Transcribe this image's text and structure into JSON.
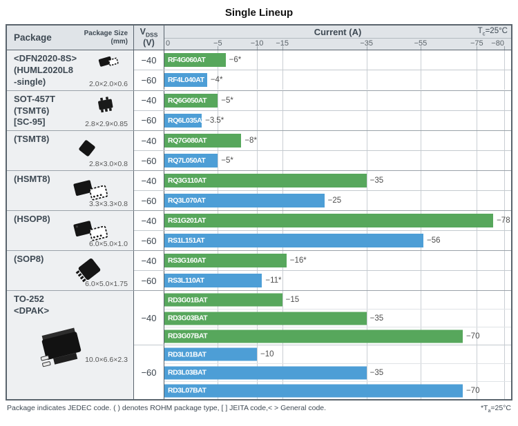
{
  "title": "Single Lineup",
  "header": {
    "package": "Package",
    "package_size": "Package Size",
    "package_size_unit": "(mm)",
    "vdss_v": "V",
    "vdss_sub": "DSS",
    "vdss_unit": "(V)",
    "current": "Current (A)",
    "tc_t": "T",
    "tc_sub": "c",
    "tc_rest": "=25°C"
  },
  "colors": {
    "green": "#57a75c",
    "blue": "#4d9ed6",
    "header_bg": "#e0e4e8",
    "package_bg": "#eef0f2",
    "border": "#59636c"
  },
  "axis": {
    "ticks": [
      {
        "label": "0",
        "value": 0,
        "pos_pct": 0
      },
      {
        "label": "−5",
        "value": 5,
        "pos_pct": 15.4
      },
      {
        "label": "−10",
        "value": 10,
        "pos_pct": 26.7
      },
      {
        "label": "−15",
        "value": 15,
        "pos_pct": 34.0
      },
      {
        "label": "−35",
        "value": 35,
        "pos_pct": 58.3
      },
      {
        "label": "−55",
        "value": 55,
        "pos_pct": 73.9
      },
      {
        "label": "−75",
        "value": 75,
        "pos_pct": 90.1
      },
      {
        "label": "−80",
        "value": 80,
        "pos_pct": 98.0
      }
    ]
  },
  "packages": [
    {
      "name": "<DFN2020-8S>\n(HUML2020L8\n -single)",
      "size": "2.0×2.0×0.6",
      "groups": [
        {
          "vdss": "−40",
          "bars": [
            {
              "part": "RF4G060AT",
              "value": 6,
              "label": "−6*"
            }
          ]
        },
        {
          "vdss": "−60",
          "bars": [
            {
              "part": "RF4L040AT",
              "value": 4,
              "label": "−4*"
            }
          ]
        }
      ]
    },
    {
      "name": "SOT-457T\n(TSMT6)\n[SC-95]",
      "size": "2.8×2.9×0.85",
      "groups": [
        {
          "vdss": "−40",
          "bars": [
            {
              "part": "RQ6G050AT",
              "value": 5,
              "label": "−5*"
            }
          ]
        },
        {
          "vdss": "−60",
          "bars": [
            {
              "part": "RQ6L035AT",
              "value": 3.5,
              "label": "−3.5*"
            }
          ]
        }
      ]
    },
    {
      "name": "(TSMT8)",
      "size": "2.8×3.0×0.8",
      "groups": [
        {
          "vdss": "−40",
          "bars": [
            {
              "part": "RQ7G080AT",
              "value": 8,
              "label": "−8*"
            }
          ]
        },
        {
          "vdss": "−60",
          "bars": [
            {
              "part": "RQ7L050AT",
              "value": 5,
              "label": "−5*"
            }
          ]
        }
      ]
    },
    {
      "name": "(HSMT8)",
      "size": "3.3×3.3×0.8",
      "groups": [
        {
          "vdss": "−40",
          "bars": [
            {
              "part": "RQ3G110AT",
              "value": 35,
              "label": "−35"
            }
          ]
        },
        {
          "vdss": "−60",
          "bars": [
            {
              "part": "RQ3L070AT",
              "value": 25,
              "label": "−25"
            }
          ]
        }
      ]
    },
    {
      "name": "(HSOP8)",
      "size": "6.0×5.0×1.0",
      "groups": [
        {
          "vdss": "−40",
          "bars": [
            {
              "part": "RS1G201AT",
              "value": 78,
              "label": "−78"
            }
          ]
        },
        {
          "vdss": "−60",
          "bars": [
            {
              "part": "RS1L151AT",
              "value": 56,
              "label": "−56"
            }
          ]
        }
      ]
    },
    {
      "name": "(SOP8)",
      "size": "6.0×5.0×1.75",
      "groups": [
        {
          "vdss": "−40",
          "bars": [
            {
              "part": "RS3G160AT",
              "value": 16,
              "label": "−16*"
            }
          ]
        },
        {
          "vdss": "−60",
          "bars": [
            {
              "part": "RS3L110AT",
              "value": 11,
              "label": "−11*"
            }
          ]
        }
      ]
    },
    {
      "name": "TO-252\n<DPAK>",
      "size": "10.0×6.6×2.3",
      "groups": [
        {
          "vdss": "−40",
          "bars": [
            {
              "part": "RD3G01BAT",
              "value": 15,
              "label": "−15"
            },
            {
              "part": "RD3G03BAT",
              "value": 35,
              "label": "−35"
            },
            {
              "part": "RD3G07BAT",
              "value": 70,
              "label": "−70"
            }
          ]
        },
        {
          "vdss": "−60",
          "bars": [
            {
              "part": "RD3L01BAT",
              "value": 10,
              "label": "−10"
            },
            {
              "part": "RD3L03BAT",
              "value": 35,
              "label": "−35"
            },
            {
              "part": "RD3L07BAT",
              "value": 70,
              "label": "−70"
            }
          ]
        }
      ]
    }
  ],
  "footer": {
    "note": "Package indicates JEDEC code. ( ) denotes ROHM package type, [ ] JEITA code,< > General code.",
    "right_pre": "*T",
    "right_sub": "a",
    "right_rest": "=25°C"
  },
  "chart_data": {
    "type": "bar",
    "orientation": "horizontal",
    "title": "Single Lineup",
    "xlabel": "Current (A)",
    "condition": "Tc=25°C",
    "x_ticks": [
      0,
      -5,
      -10,
      -15,
      -35,
      -55,
      -75,
      -80
    ],
    "x_axis_nonlinear": true,
    "legend": [
      {
        "vdss_v": -40,
        "color": "#57a75c"
      },
      {
        "vdss_v": -60,
        "color": "#4d9ed6"
      }
    ],
    "asterisk_note": "* rated at Ta=25°C",
    "items": [
      {
        "package": "<DFN2020-8S> (HUML2020L8 -single)",
        "package_size_mm": "2.0×2.0×0.6",
        "vdss_v": -40,
        "part": "RF4G060AT",
        "current_a": -6,
        "ta_note": true
      },
      {
        "package": "<DFN2020-8S> (HUML2020L8 -single)",
        "package_size_mm": "2.0×2.0×0.6",
        "vdss_v": -60,
        "part": "RF4L040AT",
        "current_a": -4,
        "ta_note": true
      },
      {
        "package": "SOT-457T (TSMT6) [SC-95]",
        "package_size_mm": "2.8×2.9×0.85",
        "vdss_v": -40,
        "part": "RQ6G050AT",
        "current_a": -5,
        "ta_note": true
      },
      {
        "package": "SOT-457T (TSMT6) [SC-95]",
        "package_size_mm": "2.8×2.9×0.85",
        "vdss_v": -60,
        "part": "RQ6L035AT",
        "current_a": -3.5,
        "ta_note": true
      },
      {
        "package": "(TSMT8)",
        "package_size_mm": "2.8×3.0×0.8",
        "vdss_v": -40,
        "part": "RQ7G080AT",
        "current_a": -8,
        "ta_note": true
      },
      {
        "package": "(TSMT8)",
        "package_size_mm": "2.8×3.0×0.8",
        "vdss_v": -60,
        "part": "RQ7L050AT",
        "current_a": -5,
        "ta_note": true
      },
      {
        "package": "(HSMT8)",
        "package_size_mm": "3.3×3.3×0.8",
        "vdss_v": -40,
        "part": "RQ3G110AT",
        "current_a": -35,
        "ta_note": false
      },
      {
        "package": "(HSMT8)",
        "package_size_mm": "3.3×3.3×0.8",
        "vdss_v": -60,
        "part": "RQ3L070AT",
        "current_a": -25,
        "ta_note": false
      },
      {
        "package": "(HSOP8)",
        "package_size_mm": "6.0×5.0×1.0",
        "vdss_v": -40,
        "part": "RS1G201AT",
        "current_a": -78,
        "ta_note": false
      },
      {
        "package": "(HSOP8)",
        "package_size_mm": "6.0×5.0×1.0",
        "vdss_v": -60,
        "part": "RS1L151AT",
        "current_a": -56,
        "ta_note": false
      },
      {
        "package": "(SOP8)",
        "package_size_mm": "6.0×5.0×1.75",
        "vdss_v": -40,
        "part": "RS3G160AT",
        "current_a": -16,
        "ta_note": true
      },
      {
        "package": "(SOP8)",
        "package_size_mm": "6.0×5.0×1.75",
        "vdss_v": -60,
        "part": "RS3L110AT",
        "current_a": -11,
        "ta_note": true
      },
      {
        "package": "TO-252 <DPAK>",
        "package_size_mm": "10.0×6.6×2.3",
        "vdss_v": -40,
        "part": "RD3G01BAT",
        "current_a": -15,
        "ta_note": false
      },
      {
        "package": "TO-252 <DPAK>",
        "package_size_mm": "10.0×6.6×2.3",
        "vdss_v": -40,
        "part": "RD3G03BAT",
        "current_a": -35,
        "ta_note": false
      },
      {
        "package": "TO-252 <DPAK>",
        "package_size_mm": "10.0×6.6×2.3",
        "vdss_v": -40,
        "part": "RD3G07BAT",
        "current_a": -70,
        "ta_note": false
      },
      {
        "package": "TO-252 <DPAK>",
        "package_size_mm": "10.0×6.6×2.3",
        "vdss_v": -60,
        "part": "RD3L01BAT",
        "current_a": -10,
        "ta_note": false
      },
      {
        "package": "TO-252 <DPAK>",
        "package_size_mm": "10.0×6.6×2.3",
        "vdss_v": -60,
        "part": "RD3L03BAT",
        "current_a": -35,
        "ta_note": false
      },
      {
        "package": "TO-252 <DPAK>",
        "package_size_mm": "10.0×6.6×2.3",
        "vdss_v": -60,
        "part": "RD3L07BAT",
        "current_a": -70,
        "ta_note": false
      }
    ]
  }
}
